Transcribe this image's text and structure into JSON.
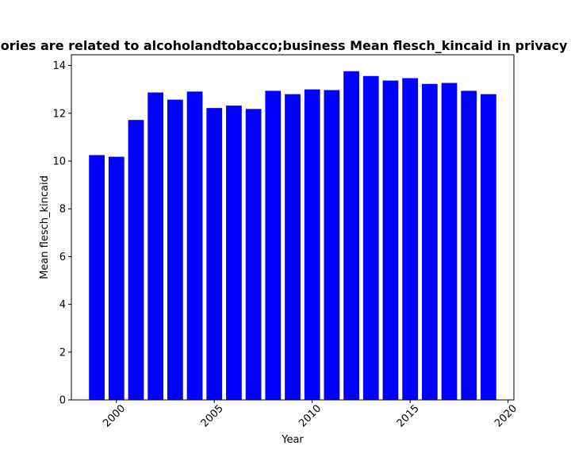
{
  "chart_data": {
    "type": "bar",
    "title": "Categories are related to alcoholandtobacco;business Mean flesch_kincaid in privacy policies",
    "xlabel": "Year",
    "ylabel": "Mean flesch_kincaid",
    "x": [
      1999,
      2000,
      2001,
      2002,
      2003,
      2004,
      2005,
      2006,
      2007,
      2008,
      2009,
      2010,
      2011,
      2012,
      2013,
      2014,
      2015,
      2016,
      2017,
      2018,
      2019
    ],
    "values": [
      10.25,
      10.18,
      11.72,
      12.87,
      12.57,
      12.91,
      12.22,
      12.32,
      12.18,
      12.94,
      12.8,
      13.0,
      12.97,
      13.76,
      13.56,
      13.37,
      13.47,
      13.23,
      13.27,
      12.94,
      12.8
    ],
    "xlim": [
      1997.7,
      2020.3
    ],
    "ylim": [
      0,
      14.45
    ],
    "xticks": [
      2000,
      2005,
      2010,
      2015,
      2020
    ],
    "yticks": [
      0,
      2,
      4,
      6,
      8,
      10,
      12,
      14
    ],
    "bar_color": "#0000ff",
    "grid": false,
    "legend": "none"
  }
}
